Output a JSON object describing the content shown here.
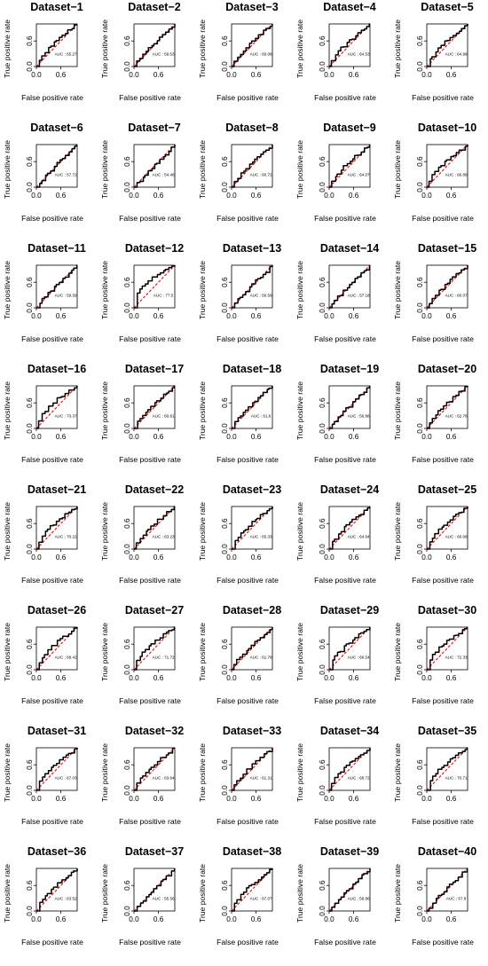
{
  "figure": {
    "page_bg": "#ffffff",
    "roc_color": "#000000",
    "diag_color": "#ff0000"
  },
  "chart_data": {
    "type": "line",
    "xlabel": "False positive rate",
    "ylabel": "True positive rate",
    "x_ticks": [
      "0.0",
      "0.6"
    ],
    "y_ticks": [
      "0.0",
      "0.6"
    ],
    "xlim": [
      0,
      1
    ],
    "ylim": [
      0,
      1
    ],
    "panels": [
      {
        "title": "Dataset−1",
        "auc_label": "AUC : 65.27",
        "shape": 0.68
      },
      {
        "title": "Dataset−2",
        "auc_label": "AUC : 59.53",
        "shape": 0.83
      },
      {
        "title": "Dataset−3",
        "auc_label": "AUC : 60.08",
        "shape": 0.78
      },
      {
        "title": "Dataset−4",
        "auc_label": "AUC : 64.53",
        "shape": 0.68
      },
      {
        "title": "Dataset−5",
        "auc_label": "AUC : 64.99",
        "shape": 0.68
      },
      {
        "title": "Dataset−6",
        "auc_label": "AUC : 57.72",
        "shape": 0.88
      },
      {
        "title": "Dataset−7",
        "auc_label": "AUC : 54.46",
        "shape": 0.95
      },
      {
        "title": "Dataset−8",
        "auc_label": "AUC : 60.72",
        "shape": 0.78
      },
      {
        "title": "Dataset−9",
        "auc_label": "AUC : 64.07",
        "shape": 0.7
      },
      {
        "title": "Dataset−10",
        "auc_label": "AUC : 66.89",
        "shape": 0.65
      },
      {
        "title": "Dataset−11",
        "auc_label": "AUC : 59.59",
        "shape": 0.83
      },
      {
        "title": "Dataset−12",
        "auc_label": "AUC : 77.5",
        "shape": 0.45
      },
      {
        "title": "Dataset−13",
        "auc_label": "AUC : 56.59",
        "shape": 0.88
      },
      {
        "title": "Dataset−14",
        "auc_label": "AUC : 57.18",
        "shape": 0.88
      },
      {
        "title": "Dataset−15",
        "auc_label": "AUC : 60.07",
        "shape": 0.78
      },
      {
        "title": "Dataset−16",
        "auc_label": "AUC : 73.37",
        "shape": 0.55
      },
      {
        "title": "Dataset−17",
        "auc_label": "AUC : 60.61",
        "shape": 0.78
      },
      {
        "title": "Dataset−18",
        "auc_label": "AUC : 61.6",
        "shape": 0.75
      },
      {
        "title": "Dataset−19",
        "auc_label": "AUC : 56.86",
        "shape": 0.88
      },
      {
        "title": "Dataset−20",
        "auc_label": "AUC : 62.78",
        "shape": 0.72
      },
      {
        "title": "Dataset−21",
        "auc_label": "AUC : 70.22",
        "shape": 0.6
      },
      {
        "title": "Dataset−22",
        "auc_label": "AUC : 63.23",
        "shape": 0.72
      },
      {
        "title": "Dataset−23",
        "auc_label": "AUC : 65.33",
        "shape": 0.68
      },
      {
        "title": "Dataset−24",
        "auc_label": "AUC : 64.64",
        "shape": 0.68
      },
      {
        "title": "Dataset−25",
        "auc_label": "AUC : 66.68",
        "shape": 0.65
      },
      {
        "title": "Dataset−26",
        "auc_label": "AUC : 68.42",
        "shape": 0.62
      },
      {
        "title": "Dataset−27",
        "auc_label": "AUC : 71.72",
        "shape": 0.58
      },
      {
        "title": "Dataset−28",
        "auc_label": "AUC : 61.79",
        "shape": 0.75
      },
      {
        "title": "Dataset−29",
        "auc_label": "AUC : 69.54",
        "shape": 0.6
      },
      {
        "title": "Dataset−30",
        "auc_label": "AUC : 72.33",
        "shape": 0.56
      },
      {
        "title": "Dataset−31",
        "auc_label": "AUC : 67.03",
        "shape": 0.65
      },
      {
        "title": "Dataset−32",
        "auc_label": "AUC : 63.64",
        "shape": 0.7
      },
      {
        "title": "Dataset−33",
        "auc_label": "AUC : 61.31",
        "shape": 0.75
      },
      {
        "title": "Dataset−34",
        "auc_label": "AUC : 68.72",
        "shape": 0.62
      },
      {
        "title": "Dataset−35",
        "auc_label": "AUC : 70.71",
        "shape": 0.58
      },
      {
        "title": "Dataset−36",
        "auc_label": "AUC : 63.52",
        "shape": 0.7
      },
      {
        "title": "Dataset−37",
        "auc_label": "AUC : 55.56",
        "shape": 0.92
      },
      {
        "title": "Dataset−38",
        "auc_label": "AUC : 67.07",
        "shape": 0.65
      },
      {
        "title": "Dataset−39",
        "auc_label": "AUC : 58.86",
        "shape": 0.85
      },
      {
        "title": "Dataset−40",
        "auc_label": "AUC : 57.8",
        "shape": 0.86
      }
    ]
  }
}
